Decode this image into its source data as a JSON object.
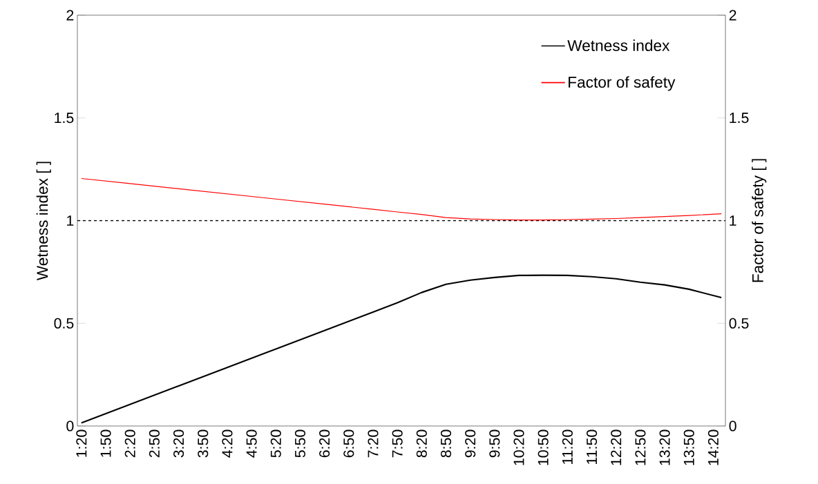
{
  "chart_data": {
    "type": "line",
    "ylabel": "Wetness index [ ]",
    "y2label": "Factor of safety [ ]",
    "x": [
      1.3333,
      2.3333,
      3.3333,
      4.3333,
      5.3333,
      6.3333,
      7.3333,
      7.8333,
      8.3333,
      8.8333,
      9.3333,
      9.8333,
      10.3333,
      10.8333,
      11.3333,
      11.8333,
      12.3333,
      12.8333,
      13.3333,
      13.8333,
      14.5
    ],
    "series": [
      {
        "name": "Wetness index",
        "color": "#000000",
        "values": [
          0.015,
          0.105,
          0.195,
          0.285,
          0.375,
          0.465,
          0.555,
          0.6,
          0.65,
          0.69,
          0.71,
          0.723,
          0.733,
          0.734,
          0.733,
          0.727,
          0.717,
          0.7,
          0.687,
          0.666,
          0.625
        ]
      },
      {
        "name": "Factor of safety",
        "color": "#ff0000",
        "axis": "y2",
        "values": [
          1.205,
          1.18,
          1.155,
          1.13,
          1.105,
          1.08,
          1.055,
          1.042,
          1.03,
          1.015,
          1.008,
          1.005,
          1.003,
          1.003,
          1.005,
          1.007,
          1.01,
          1.015,
          1.02,
          1.025,
          1.033
        ]
      }
    ],
    "xlim": [
      1.25,
      14.5833
    ],
    "xticks": [
      {
        "value": 1.3333,
        "label": "1:20"
      },
      {
        "value": 1.8333,
        "label": "1:50"
      },
      {
        "value": 2.3333,
        "label": "2:20"
      },
      {
        "value": 2.8333,
        "label": "2:50"
      },
      {
        "value": 3.3333,
        "label": "3:20"
      },
      {
        "value": 3.8333,
        "label": "3:50"
      },
      {
        "value": 4.3333,
        "label": "4:20"
      },
      {
        "value": 4.8333,
        "label": "4:50"
      },
      {
        "value": 5.3333,
        "label": "5:20"
      },
      {
        "value": 5.8333,
        "label": "5:50"
      },
      {
        "value": 6.3333,
        "label": "6:20"
      },
      {
        "value": 6.8333,
        "label": "6:50"
      },
      {
        "value": 7.3333,
        "label": "7:20"
      },
      {
        "value": 7.8333,
        "label": "7:50"
      },
      {
        "value": 8.3333,
        "label": "8:20"
      },
      {
        "value": 8.8333,
        "label": "8:50"
      },
      {
        "value": 9.3333,
        "label": "9:20"
      },
      {
        "value": 9.8333,
        "label": "9:50"
      },
      {
        "value": 10.3333,
        "label": "10:20"
      },
      {
        "value": 10.8333,
        "label": "10:50"
      },
      {
        "value": 11.3333,
        "label": "11:20"
      },
      {
        "value": 11.8333,
        "label": "11:50"
      },
      {
        "value": 12.3333,
        "label": "12:20"
      },
      {
        "value": 12.8333,
        "label": "12:50"
      },
      {
        "value": 13.3333,
        "label": "13:20"
      },
      {
        "value": 13.8333,
        "label": "13:50"
      },
      {
        "value": 14.3333,
        "label": "14:20"
      }
    ],
    "ylim": [
      0,
      2
    ],
    "yticks": [
      0,
      0.5,
      1,
      1.5,
      2
    ],
    "y2lim": [
      0,
      2
    ],
    "y2ticks": [
      0,
      0.5,
      1,
      1.5,
      2
    ],
    "ref_lines": [
      {
        "axis": "y",
        "value": 1,
        "color": "#000000",
        "line_style": "dashed"
      }
    ],
    "legend": "top right",
    "marker": "none",
    "line_style": "solid",
    "grid": false
  }
}
